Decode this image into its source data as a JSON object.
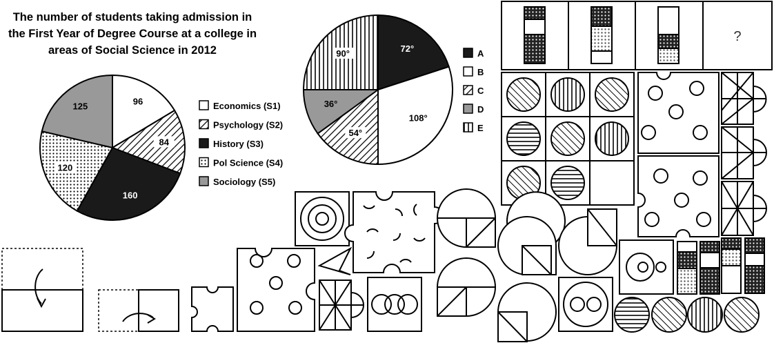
{
  "chart_data": [
    {
      "type": "pie",
      "title": "The number of students taking admission in the First Year of Degree Course at a college in areas of Social Science in 2012",
      "title_lines": [
        "The number of students taking admission in",
        "the First Year of Degree Course at a college in",
        "areas of Social Science in 2012"
      ],
      "labels": [
        "Economics (S1)",
        "Psychology (S2)",
        "History (S3)",
        "Pol Science (S4)",
        "Sociology (S5)"
      ],
      "values": [
        96,
        84,
        160,
        120,
        125
      ],
      "value_labels": [
        "96",
        "84",
        "160",
        "120",
        "125"
      ],
      "fills": [
        "white",
        "diagonal",
        "black",
        "dots",
        "gray"
      ]
    },
    {
      "type": "pie",
      "labels": [
        "A",
        "B",
        "C",
        "D",
        "E"
      ],
      "values": [
        72,
        108,
        54,
        36,
        90
      ],
      "value_labels": [
        "72°",
        "108°",
        "54°",
        "36°",
        "90°"
      ],
      "fills": [
        "black",
        "white",
        "diagonal",
        "gray",
        "vertical"
      ]
    }
  ],
  "puzzle": {
    "missing_mark": "?"
  },
  "colors": {
    "ink": "#000000",
    "gray": "#999999",
    "background": "#ffffff"
  }
}
